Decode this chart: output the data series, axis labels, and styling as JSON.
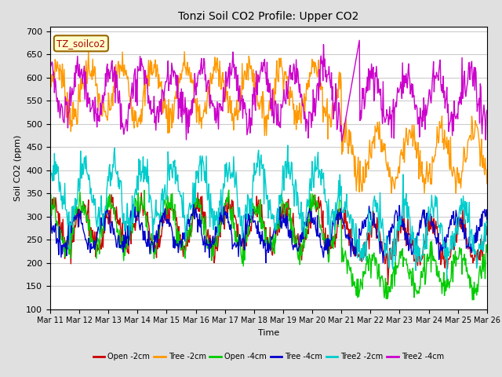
{
  "title": "Tonzi Soil CO2 Profile: Upper CO2",
  "xlabel": "Time",
  "ylabel": "Soil CO2 (ppm)",
  "ylim": [
    100,
    710
  ],
  "yticks": [
    100,
    150,
    200,
    250,
    300,
    350,
    400,
    450,
    500,
    550,
    600,
    650,
    700
  ],
  "xtick_labels": [
    "Mar 11",
    "Mar 12",
    "Mar 13",
    "Mar 14",
    "Mar 15",
    "Mar 16",
    "Mar 17",
    "Mar 18",
    "Mar 19",
    "Mar 20",
    "Mar 21",
    "Mar 22",
    "Mar 23",
    "Mar 24",
    "Mar 25",
    "Mar 26"
  ],
  "legend_label": "TZ_soilco2",
  "series_colors": {
    "Open -2cm": "#cc0000",
    "Tree -2cm": "#ff9900",
    "Open -4cm": "#00cc00",
    "Tree -4cm": "#0000cc",
    "Tree2 -2cm": "#00cccc",
    "Tree2 -4cm": "#cc00cc"
  },
  "bg_color": "#e0e0e0",
  "plot_bg_color": "#ffffff",
  "grid_color": "#cccccc"
}
